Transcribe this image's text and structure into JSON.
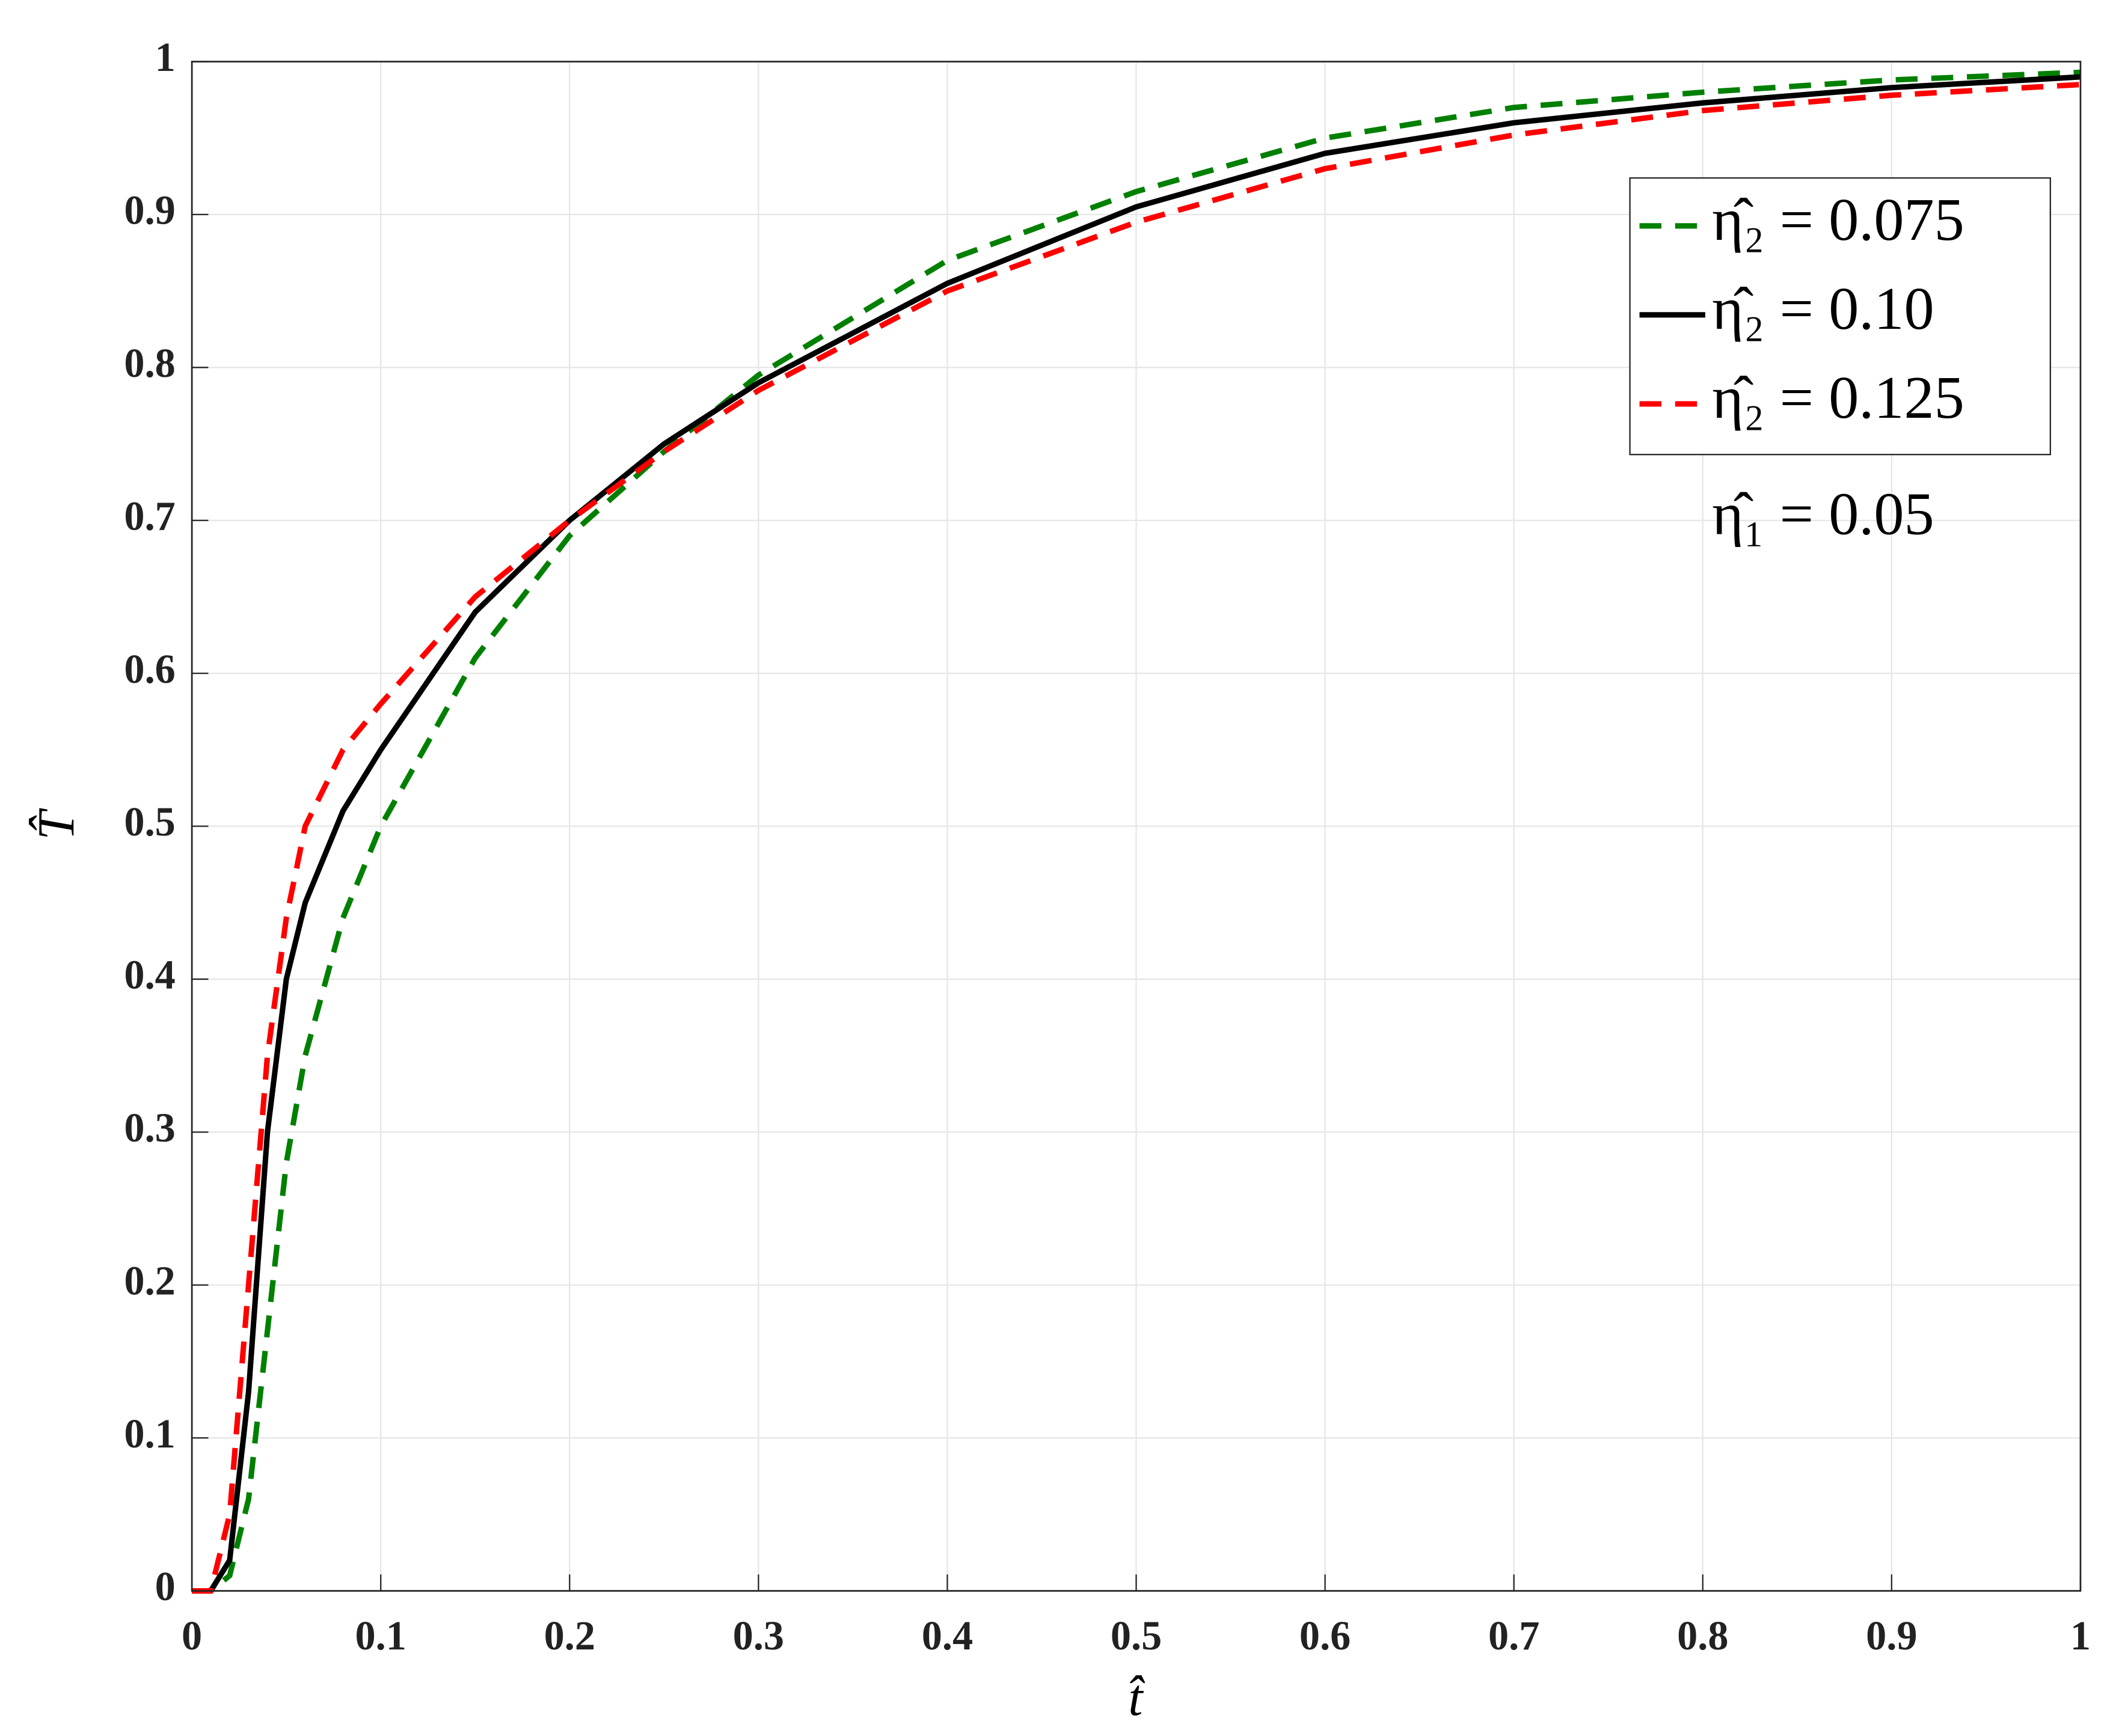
{
  "chart_data": {
    "type": "line",
    "x": [
      0,
      0.01,
      0.02,
      0.03,
      0.04,
      0.05,
      0.06,
      0.08,
      0.1,
      0.15,
      0.2,
      0.25,
      0.3,
      0.4,
      0.5,
      0.6,
      0.7,
      0.8,
      0.9,
      1.0
    ],
    "series": [
      {
        "name": "η̂₂ = 0.075",
        "color": "#008000",
        "dash": true,
        "values": [
          0,
          0,
          0.01,
          0.06,
          0.17,
          0.28,
          0.35,
          0.44,
          0.5,
          0.61,
          0.69,
          0.745,
          0.795,
          0.87,
          0.915,
          0.95,
          0.97,
          0.98,
          0.988,
          0.993
        ]
      },
      {
        "name": "η̂₂ = 0.10",
        "color": "#000000",
        "dash": false,
        "values": [
          0,
          0,
          0.02,
          0.13,
          0.3,
          0.4,
          0.45,
          0.51,
          0.55,
          0.64,
          0.7,
          0.75,
          0.79,
          0.855,
          0.905,
          0.94,
          0.96,
          0.973,
          0.983,
          0.99
        ]
      },
      {
        "name": "η̂₂ = 0.125",
        "color": "#ff0000",
        "dash": true,
        "values": [
          0,
          0,
          0.05,
          0.2,
          0.35,
          0.44,
          0.5,
          0.55,
          0.58,
          0.65,
          0.7,
          0.745,
          0.785,
          0.85,
          0.895,
          0.93,
          0.952,
          0.968,
          0.978,
          0.985
        ]
      }
    ],
    "annotation": "η̂₁ = 0.05",
    "x_label": "t̂",
    "y_label": "T̂",
    "xlim": [
      0,
      1
    ],
    "ylim": [
      0,
      1
    ],
    "xticks": [
      0,
      0.1,
      0.2,
      0.3,
      0.4,
      0.5,
      0.6,
      0.7,
      0.8,
      0.9,
      1
    ],
    "yticks": [
      0,
      0.1,
      0.2,
      0.3,
      0.4,
      0.5,
      0.6,
      0.7,
      0.8,
      0.9,
      1
    ],
    "grid": true,
    "legend": "upper-right"
  }
}
